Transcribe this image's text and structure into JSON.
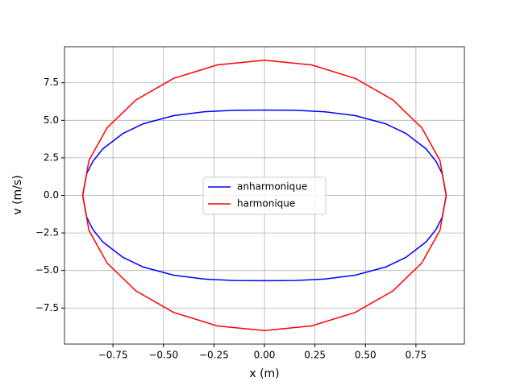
{
  "chart_data": {
    "type": "line",
    "xlabel": "x (m)",
    "ylabel": "v (m/s)",
    "xlim": [
      -0.99,
      0.99
    ],
    "ylim": [
      -9.9,
      9.9
    ],
    "xticks": [
      {
        "value": -0.75,
        "label": "−0.75"
      },
      {
        "value": -0.5,
        "label": "−0.50"
      },
      {
        "value": -0.25,
        "label": "−0.25"
      },
      {
        "value": 0,
        "label": "0.00"
      },
      {
        "value": 0.25,
        "label": "0.25"
      },
      {
        "value": 0.5,
        "label": "0.50"
      },
      {
        "value": 0.75,
        "label": "0.75"
      }
    ],
    "yticks": [
      {
        "value": -7.5,
        "label": "−7.5"
      },
      {
        "value": -5,
        "label": "−5.0"
      },
      {
        "value": -2.5,
        "label": "−2.5"
      },
      {
        "value": 0,
        "label": "0.0"
      },
      {
        "value": 2.5,
        "label": "2.5"
      },
      {
        "value": 5,
        "label": "5.0"
      },
      {
        "value": 7.5,
        "label": "7.5"
      }
    ],
    "grid": true,
    "legend": "center",
    "series": [
      {
        "name": "anharmonique",
        "color": "#0000ff",
        "x": [
          0.9,
          0.88,
          0.85,
          0.8,
          0.7,
          0.6,
          0.45,
          0.3,
          0.15,
          0,
          -0.15,
          -0.3,
          -0.45,
          -0.6,
          -0.7,
          -0.8,
          -0.85,
          -0.88,
          -0.9,
          -0.88,
          -0.85,
          -0.8,
          -0.7,
          -0.6,
          -0.45,
          -0.3,
          -0.15,
          0,
          0.15,
          0.3,
          0.45,
          0.6,
          0.7,
          0.8,
          0.85,
          0.88,
          0.9
        ],
        "values": [
          0,
          1.45,
          2.26,
          3.1,
          4.13,
          4.77,
          5.31,
          5.57,
          5.67,
          5.68,
          5.67,
          5.57,
          5.31,
          4.77,
          4.13,
          3.1,
          2.26,
          1.45,
          0,
          -1.45,
          -2.26,
          -3.1,
          -4.13,
          -4.77,
          -5.31,
          -5.57,
          -5.67,
          -5.68,
          -5.67,
          -5.57,
          -5.31,
          -4.77,
          -4.13,
          -3.1,
          -2.26,
          -1.45,
          0
        ]
      },
      {
        "name": "harmonique",
        "color": "#ff0000",
        "x": [
          0.9,
          0.869,
          0.779,
          0.636,
          0.45,
          0.233,
          0,
          -0.233,
          -0.45,
          -0.636,
          -0.779,
          -0.869,
          -0.9,
          -0.869,
          -0.779,
          -0.636,
          -0.45,
          -0.233,
          0,
          0.233,
          0.45,
          0.636,
          0.779,
          0.869,
          0.9
        ],
        "values": [
          0,
          2.33,
          4.5,
          6.36,
          7.79,
          8.69,
          9,
          8.69,
          7.79,
          6.36,
          4.5,
          2.33,
          0,
          -2.33,
          -4.5,
          -6.36,
          -7.79,
          -8.69,
          -9,
          -8.69,
          -7.79,
          -6.36,
          -4.5,
          -2.33,
          0
        ]
      }
    ]
  }
}
